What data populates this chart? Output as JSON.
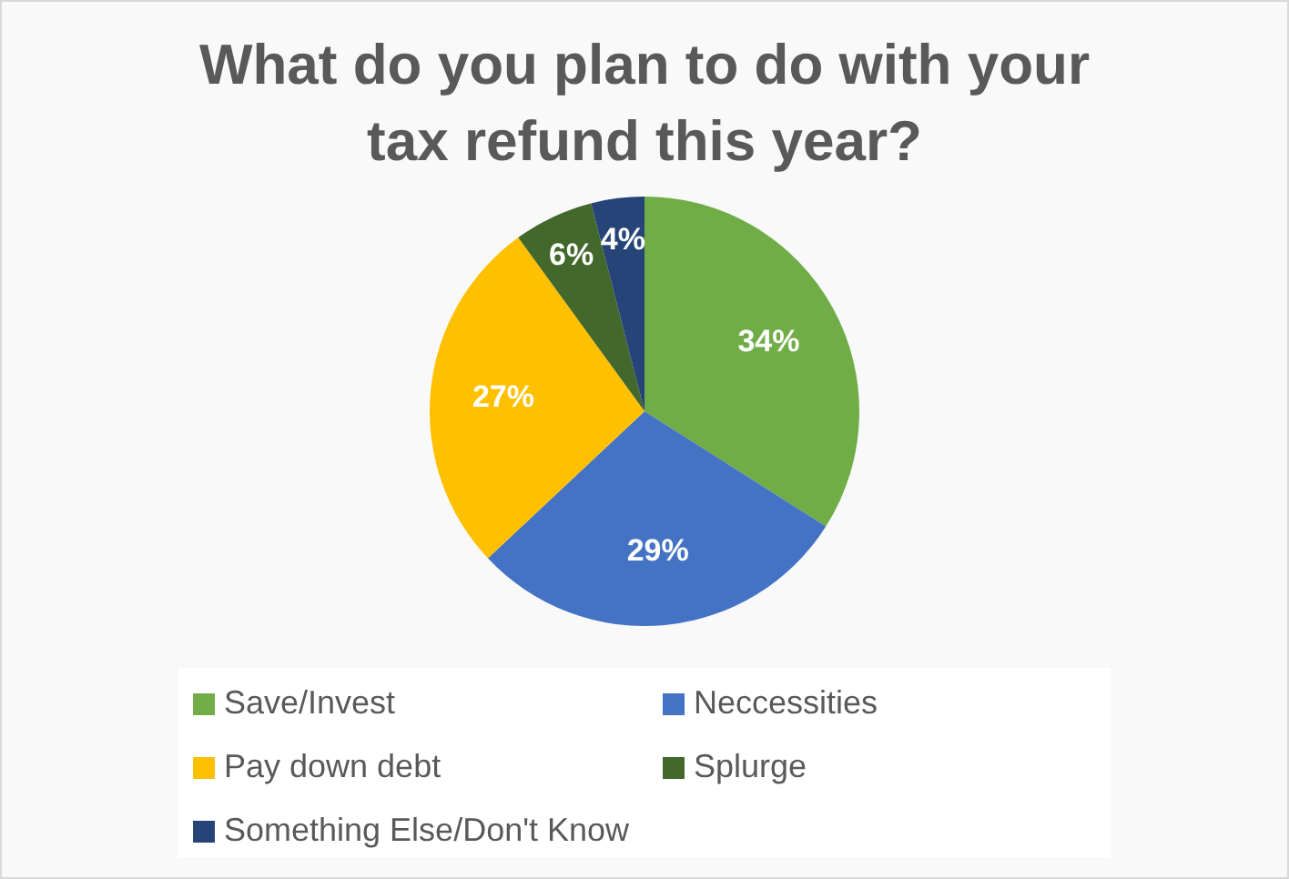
{
  "chart_data": {
    "type": "pie",
    "title": "What do you plan to do with your tax refund this year?",
    "categories": [
      "Save/Invest",
      "Neccessities",
      "Pay down debt",
      "Splurge",
      "Something Else/Don't Know"
    ],
    "values": [
      34,
      29,
      27,
      6,
      4
    ],
    "colors": [
      "#70ad47",
      "#4472c4",
      "#ffc000",
      "#43682b",
      "#264478"
    ],
    "value_labels": [
      "34%",
      "29%",
      "27%",
      "6%",
      "4%"
    ],
    "legend": "bottom"
  }
}
